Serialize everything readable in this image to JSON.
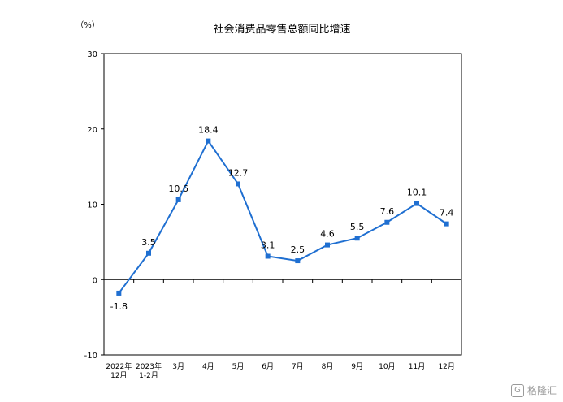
{
  "chart_data": {
    "type": "line",
    "title": "社会消费品零售总额同比增速",
    "unit_label": "（%）",
    "categories": [
      [
        "2022年",
        "12月"
      ],
      [
        "2023年",
        "1-2月"
      ],
      [
        "3月"
      ],
      [
        "4月"
      ],
      [
        "5月"
      ],
      [
        "6月"
      ],
      [
        "7月"
      ],
      [
        "8月"
      ],
      [
        "9月"
      ],
      [
        "10月"
      ],
      [
        "11月"
      ],
      [
        "12月"
      ]
    ],
    "series": [
      {
        "values": [
          -1.8,
          3.5,
          10.6,
          18.4,
          12.7,
          3.1,
          2.5,
          4.6,
          5.5,
          7.6,
          10.1,
          7.4
        ]
      }
    ],
    "data_labels": [
      "-1.8",
      "3.5",
      "10.6",
      "18.4",
      "12.7",
      "3.1",
      "2.5",
      "4.6",
      "5.5",
      "7.6",
      "10.1",
      "7.4"
    ],
    "ylim": [
      -10,
      30
    ],
    "yticks": [
      -10,
      0,
      10,
      20,
      30
    ],
    "grid": false,
    "line_color": "#1f6fd1"
  },
  "watermark": {
    "icon": "G",
    "text": "格隆汇"
  }
}
